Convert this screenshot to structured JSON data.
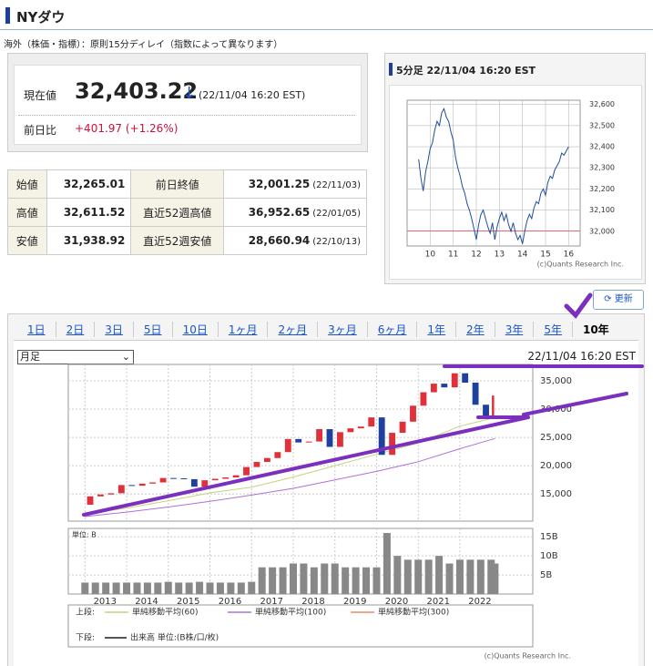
{
  "header": {
    "title": "NYダウ"
  },
  "notice": "海外（株価・指標）：原則15分ディレイ（指数によって異なります）",
  "quote": {
    "label": "現在値",
    "price": "32,403.22",
    "arrow": "↓",
    "time": "(22/11/04 16:20 EST)",
    "change_label": "前日比",
    "change": "+401.97 (+1.26%)"
  },
  "stats": {
    "rows": [
      [
        "始値",
        "32,265.01",
        "前日終値",
        "32,001.25",
        "(22/11/03)"
      ],
      [
        "高値",
        "32,611.52",
        "直近52週高値",
        "36,952.65",
        "(22/01/05)"
      ],
      [
        "安値",
        "31,938.92",
        "直近52週安値",
        "28,660.94",
        "(22/10/13)"
      ]
    ]
  },
  "update_button": "更新",
  "tabs": [
    "1日",
    "2日",
    "3日",
    "5日",
    "10日",
    "1ヶ月",
    "2ヶ月",
    "3ヶ月",
    "6ヶ月",
    "1年",
    "2年",
    "3年",
    "5年",
    "10年"
  ],
  "active_tab": "10年",
  "select": "月足",
  "timestamp": "22/11/04 16:20 EST",
  "chart_data": [
    {
      "type": "line",
      "title": "5分足 22/11/04 16:20 EST",
      "color": "#1f4e9c",
      "x": [
        9.5,
        9.6,
        9.7,
        9.8,
        9.9,
        10.0,
        10.1,
        10.2,
        10.3,
        10.4,
        10.5,
        10.6,
        10.7,
        10.8,
        10.9,
        11.0,
        11.1,
        11.2,
        11.3,
        11.4,
        11.5,
        11.6,
        11.7,
        11.8,
        11.9,
        12.0,
        12.1,
        12.2,
        12.3,
        12.4,
        12.5,
        12.6,
        12.7,
        12.8,
        12.9,
        13.0,
        13.1,
        13.2,
        13.3,
        13.4,
        13.5,
        13.6,
        13.7,
        13.8,
        13.9,
        14.0,
        14.1,
        14.2,
        14.3,
        14.4,
        14.5,
        14.6,
        14.7,
        14.8,
        14.9,
        15.0,
        15.1,
        15.2,
        15.3,
        15.4,
        15.5,
        15.6,
        15.7,
        15.8,
        15.9,
        16.0
      ],
      "values": [
        32340,
        32250,
        32190,
        32280,
        32330,
        32390,
        32420,
        32480,
        32520,
        32500,
        32560,
        32580,
        32540,
        32520,
        32470,
        32430,
        32350,
        32300,
        32260,
        32210,
        32180,
        32130,
        32100,
        32060,
        32010,
        31960,
        32030,
        32080,
        32100,
        32060,
        32020,
        31990,
        32040,
        31960,
        32020,
        32060,
        32090,
        32050,
        32080,
        32030,
        32000,
        32040,
        31990,
        31960,
        31980,
        31940,
        32000,
        32050,
        32080,
        32060,
        32110,
        32140,
        32130,
        32180,
        32200,
        32170,
        32230,
        32260,
        32250,
        32290,
        32310,
        32330,
        32370,
        32360,
        32380,
        32400
      ],
      "xlim": [
        9,
        16.5
      ],
      "ylim": [
        31930,
        32620
      ],
      "xticks": [
        10,
        11,
        12,
        13,
        14,
        15,
        16
      ],
      "yticks": [
        {
          "value": 32000,
          "label": "32,000"
        },
        {
          "value": 32100,
          "label": "32,100"
        },
        {
          "value": 32200,
          "label": "32,200"
        },
        {
          "value": 32300,
          "label": "32,300"
        },
        {
          "value": 32400,
          "label": "32,400"
        },
        {
          "value": 32500,
          "label": "32,500"
        },
        {
          "value": 32600,
          "label": "32,600"
        }
      ],
      "reference_line": 32001.25,
      "reference_color": "#e07070",
      "grid": true,
      "credit": "(c)Quants Research Inc."
    },
    {
      "type": "candlestick",
      "up_color": "#e0303a",
      "down_color": "#2040a0",
      "x": [
        2013.0,
        2013.25,
        2013.5,
        2013.75,
        2014.0,
        2014.25,
        2014.5,
        2014.75,
        2015.0,
        2015.25,
        2015.5,
        2015.75,
        2016.0,
        2016.25,
        2016.5,
        2016.75,
        2017.0,
        2017.25,
        2017.5,
        2017.75,
        2018.0,
        2018.25,
        2018.5,
        2018.75,
        2019.0,
        2019.25,
        2019.5,
        2019.75,
        2020.0,
        2020.25,
        2020.5,
        2020.75,
        2021.0,
        2021.25,
        2021.5,
        2021.75,
        2022.0,
        2022.25,
        2022.5,
        2022.75,
        2022.84
      ],
      "values": [
        13104,
        14579,
        14910,
        15130,
        16577,
        16458,
        16827,
        17043,
        17823,
        17776,
        17620,
        16285,
        17425,
        17685,
        17930,
        18308,
        19763,
        20663,
        21350,
        22405,
        24719,
        24103,
        24271,
        26458,
        23327,
        25929,
        26600,
        26917,
        28538,
        21917,
        25813,
        27782,
        30606,
        32982,
        34503,
        33844,
        36338,
        34678,
        30775,
        28726,
        32403
      ],
      "xlim": [
        2012.6,
        2023.75
      ],
      "ylim": [
        10200,
        37900
      ],
      "yticks": [
        {
          "value": 15000,
          "label": "15,000"
        },
        {
          "value": 20000,
          "label": "20,000"
        },
        {
          "value": 25000,
          "label": "25,000"
        },
        {
          "value": 30000,
          "label": "30,000"
        },
        {
          "value": 35000,
          "label": "35,000"
        }
      ],
      "xticks": [
        2013,
        2014,
        2015,
        2016,
        2017,
        2018,
        2019,
        2020,
        2021,
        2022
      ],
      "grid": true,
      "legend_prefix": "上段:",
      "series": [
        {
          "name": "単純移動平均(60)",
          "color": "#c8d27a",
          "x": [
            2013,
            2014,
            2015,
            2016,
            2017,
            2018,
            2019,
            2020,
            2021,
            2022,
            2022.84
          ],
          "values": [
            11500,
            12500,
            13800,
            15200,
            16200,
            18000,
            20000,
            22000,
            24000,
            27000,
            28500
          ]
        },
        {
          "name": "単純移動平均(100)",
          "color": "#b070d8",
          "x": [
            2013,
            2014,
            2015,
            2016,
            2017,
            2018,
            2019,
            2020,
            2021,
            2022,
            2022.84
          ],
          "values": [
            11000,
            11800,
            12700,
            13700,
            14800,
            16000,
            17500,
            19000,
            20700,
            23000,
            24800
          ]
        },
        {
          "name": "単純移動平均(300)",
          "color": "#f08a60",
          "x": [],
          "values": []
        }
      ]
    },
    {
      "type": "bar",
      "unit_label": "単位: B",
      "color": "#888888",
      "x": [
        2013.0,
        2013.25,
        2013.5,
        2013.75,
        2014.0,
        2014.25,
        2014.5,
        2014.75,
        2015.0,
        2015.25,
        2015.5,
        2015.75,
        2016.0,
        2016.25,
        2016.5,
        2016.75,
        2017.0,
        2017.25,
        2017.5,
        2017.75,
        2018.0,
        2018.25,
        2018.5,
        2018.75,
        2019.0,
        2019.25,
        2019.5,
        2019.75,
        2020.0,
        2020.25,
        2020.5,
        2020.75,
        2021.0,
        2021.25,
        2021.5,
        2021.75,
        2022.0,
        2022.25,
        2022.5,
        2022.75,
        2022.84
      ],
      "values": [
        3,
        3,
        3,
        3,
        3,
        3,
        3,
        3,
        3.2,
        3,
        3,
        3.2,
        3,
        3,
        3,
        3,
        3.2,
        7,
        7,
        7,
        8,
        8,
        7,
        8,
        8,
        7,
        7,
        7,
        7,
        16,
        10,
        9,
        9,
        9,
        10,
        8,
        9,
        9,
        9,
        9,
        8
      ],
      "xlim": [
        2012.6,
        2023.75
      ],
      "ylim": [
        0,
        17.2
      ],
      "yticks": [
        {
          "value": 5,
          "label": "5B"
        },
        {
          "value": 10,
          "label": "10B"
        },
        {
          "value": 15,
          "label": "15B"
        }
      ],
      "xticks": [
        2013,
        2014,
        2015,
        2016,
        2017,
        2018,
        2019,
        2020,
        2021,
        2022
      ],
      "grid": true,
      "legend_prefix": "下段:",
      "legend_label": "出来高 単位:(B株/口/枚)",
      "credit": "(c)Quants Research Inc."
    }
  ]
}
